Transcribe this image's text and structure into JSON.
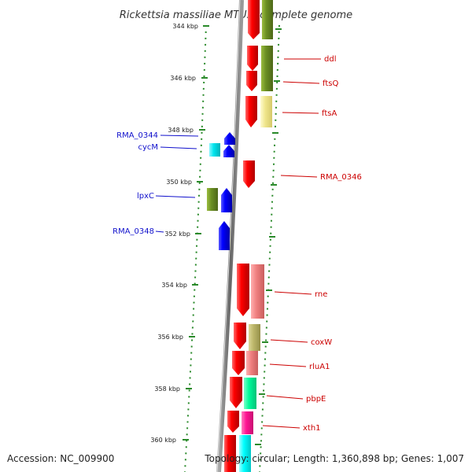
{
  "title": "Rickettsia massiliae MTU5, complete genome",
  "footer": {
    "accession": "Accession: NC_009900",
    "topology": "Topology: circular; Length: 1,360,898 bp; Genes: 1,007"
  },
  "colors": {
    "backbone": "#888888",
    "tick": "#2a8a2a",
    "left_strand_label": "#1010cc",
    "right_strand_label": "#cc0000"
  },
  "kbp_ticks": [
    "344 kbp",
    "346 kbp",
    "348 kbp",
    "350 kbp",
    "352 kbp",
    "354 kbp",
    "356 kbp",
    "358 kbp",
    "360 kbp"
  ],
  "genes": [
    {
      "name": "ddl",
      "side": "right",
      "color": "#e00000"
    },
    {
      "name": "ftsQ",
      "side": "right",
      "color": "#e00000"
    },
    {
      "name": "ftsA",
      "side": "right",
      "color": "#e00000"
    },
    {
      "name": "RMA_0344",
      "side": "left",
      "color": "#1010dd"
    },
    {
      "name": "cycM",
      "side": "left",
      "color": "#1010dd"
    },
    {
      "name": "RMA_0346",
      "side": "right",
      "color": "#e00000"
    },
    {
      "name": "lpxC",
      "side": "left",
      "color": "#1010dd"
    },
    {
      "name": "RMA_0348",
      "side": "left",
      "color": "#1010dd"
    },
    {
      "name": "rne",
      "side": "right",
      "color": "#e00000"
    },
    {
      "name": "coxW",
      "side": "right",
      "color": "#e00000"
    },
    {
      "name": "rluA1",
      "side": "right",
      "color": "#e00000"
    },
    {
      "name": "pbpE",
      "side": "right",
      "color": "#e00000"
    },
    {
      "name": "xth1",
      "side": "right",
      "color": "#e00000"
    }
  ],
  "category_colors": [
    "#6b8e23",
    "#f0e68c",
    "#00e5ee",
    "#f08080",
    "#bdb76b",
    "#00fa9a",
    "#ff1493",
    "#00ffff"
  ]
}
